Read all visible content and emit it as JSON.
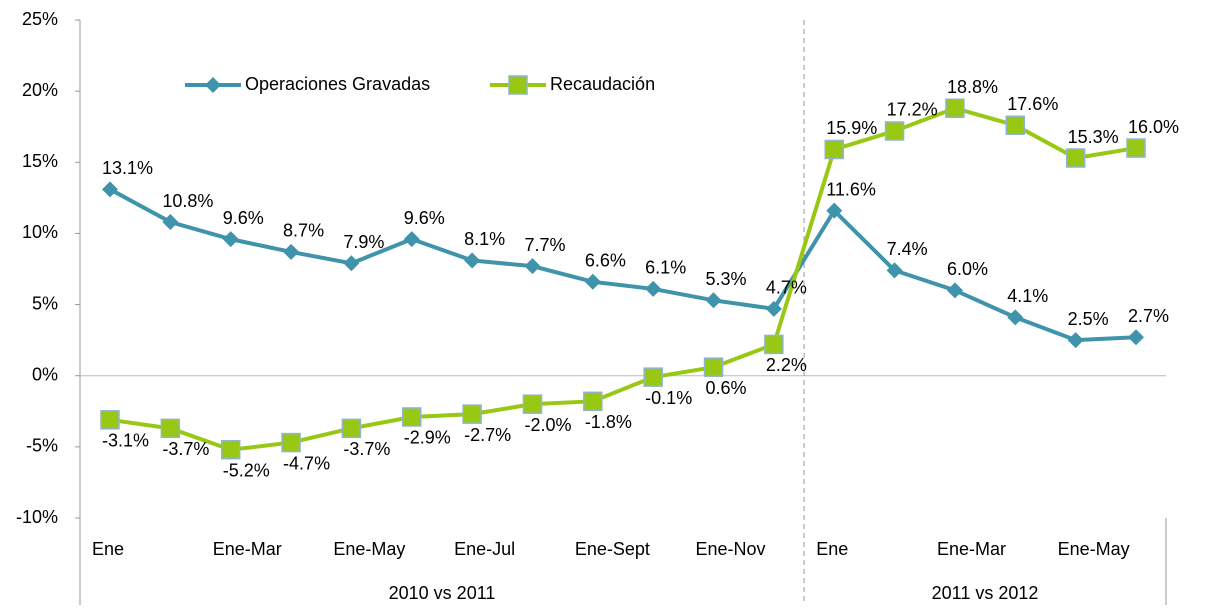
{
  "chart_data": {
    "type": "line",
    "categories": [
      "Ene",
      null,
      "Ene-Mar",
      null,
      "Ene-May",
      null,
      "Ene-Jul",
      null,
      "Ene-Sept",
      null,
      "Ene-Nov",
      null,
      "Ene",
      null,
      "Ene-Mar",
      null,
      "Ene-May",
      null
    ],
    "groups": [
      {
        "label": "2010 vs 2011",
        "count": 12
      },
      {
        "label": "2011 vs 2012",
        "count": 6
      }
    ],
    "series": [
      {
        "name": "Operaciones Gravadas",
        "color": "#3f93ab",
        "marker": "diamond",
        "values": [
          13.1,
          10.8,
          9.6,
          8.7,
          7.9,
          9.6,
          8.1,
          7.7,
          6.6,
          6.1,
          5.3,
          4.7,
          11.6,
          7.4,
          6.0,
          4.1,
          2.5,
          2.7
        ],
        "value_labels": [
          "13.1%",
          "10.8%",
          "9.6%",
          "8.7%",
          "7.9%",
          "9.6%",
          "8.1%",
          "7.7%",
          "6.6%",
          "6.1%",
          "5.3%",
          "4.7%",
          "11.6%",
          "7.4%",
          "6.0%",
          "4.1%",
          "2.5%",
          "2.7%"
        ]
      },
      {
        "name": "Recaudación",
        "color": "#99c814",
        "marker": "square",
        "values": [
          -3.1,
          -3.7,
          -5.2,
          -4.7,
          -3.7,
          -2.9,
          -2.7,
          -2.0,
          -1.8,
          -0.1,
          0.6,
          2.2,
          15.9,
          17.2,
          18.8,
          17.6,
          15.3,
          16.0
        ],
        "value_labels": [
          "-3.1%",
          "-3.7%",
          "-5.2%",
          "-4.7%",
          "-3.7%",
          "-2.9%",
          "-2.7%",
          "-2.0%",
          "-1.8%",
          "-0.1%",
          "0.6%",
          "2.2%",
          "15.9%",
          "17.2%",
          "18.8%",
          "17.6%",
          "15.3%",
          "16.0%"
        ]
      }
    ],
    "ylim": [
      -10,
      25
    ],
    "yticks": [
      {
        "value": -10,
        "label": "-10%"
      },
      {
        "value": -5,
        "label": "-5%"
      },
      {
        "value": 0,
        "label": "0%"
      },
      {
        "value": 5,
        "label": "5%"
      },
      {
        "value": 10,
        "label": "10%"
      },
      {
        "value": 15,
        "label": "15%"
      },
      {
        "value": 20,
        "label": "20%"
      },
      {
        "value": 25,
        "label": "25%"
      }
    ],
    "legend": "top-left"
  }
}
